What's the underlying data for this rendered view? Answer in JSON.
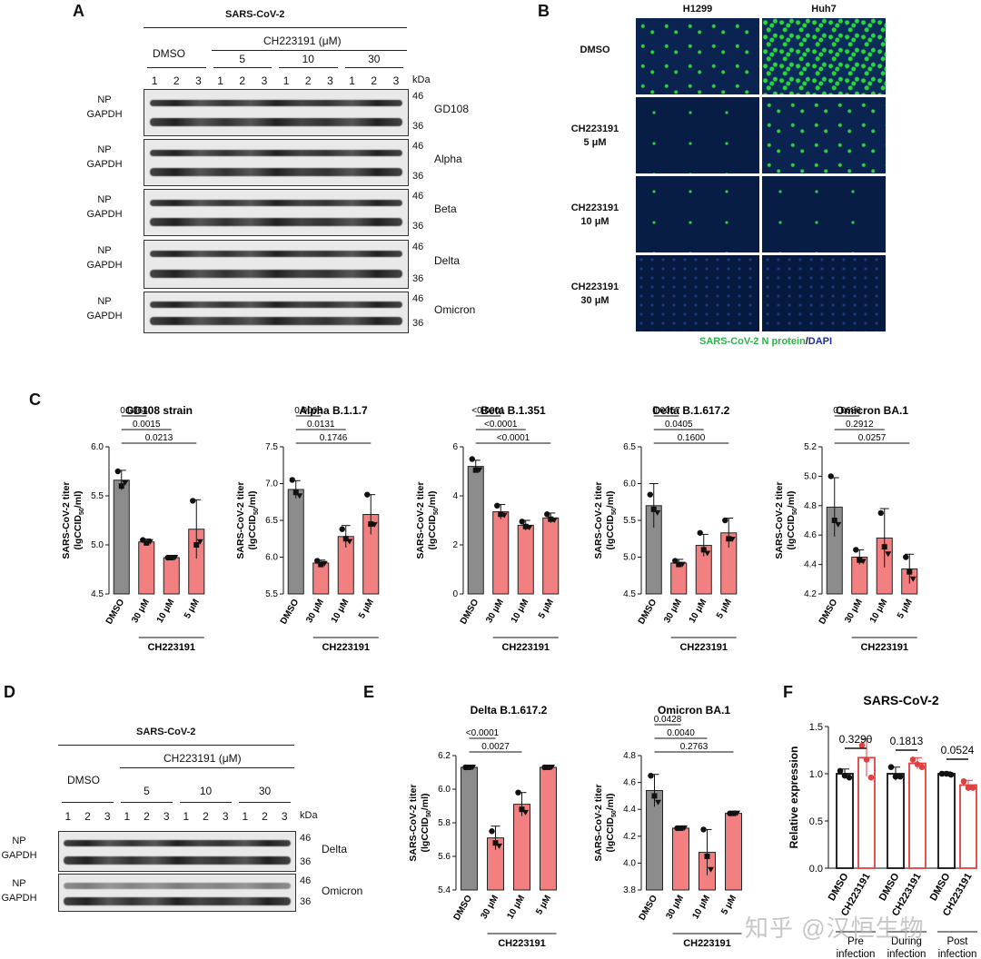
{
  "panelA": {
    "letter": "A",
    "title": "SARS-CoV-2",
    "dmso": "DMSO",
    "compound": "CH223191  (μM)",
    "doses": [
      "5",
      "10",
      "30"
    ],
    "lanes": [
      "1",
      "2",
      "3",
      "1",
      "2",
      "3",
      "1",
      "2",
      "3",
      "1",
      "2",
      "3"
    ],
    "kda": "kDa",
    "np": "NP",
    "gapdh": "GAPDH",
    "mw_top": "46",
    "mw_bot": "36",
    "strains": [
      "GD108",
      "Alpha",
      "Beta",
      "Delta",
      "Omicron"
    ]
  },
  "panelB": {
    "letter": "B",
    "cols": [
      "H1299",
      "Huh7"
    ],
    "rows": [
      "DMSO",
      "CH223191\n5 μM",
      "CH223191\n10 μM",
      "CH223191\n30 μM"
    ],
    "legend_green": "SARS-CoV-2 N protein",
    "legend_sep": "/",
    "legend_blue": "DAPI"
  },
  "panelC": {
    "letter": "C",
    "ylabel": "SARS-CoV-2 titer",
    "ylabel2": "(lgCCID",
    "ylabel_sub": "50",
    "ylabel3": "/ml)",
    "group": "CH223191"
  },
  "panelD": {
    "letter": "D",
    "title": "SARS-CoV-2",
    "dmso": "DMSO",
    "compound": "CH223191  (μM)",
    "doses": [
      "5",
      "10",
      "30"
    ],
    "lanes": [
      "1",
      "2",
      "3",
      "1",
      "2",
      "3",
      "1",
      "2",
      "3",
      "1",
      "2",
      "3"
    ],
    "kda": "kDa",
    "np": "NP",
    "gapdh": "GAPDH",
    "mw_top": "46",
    "mw_bot": "36",
    "strains": [
      "Delta",
      "Omicron"
    ]
  },
  "panelE": {
    "letter": "E"
  },
  "panelF": {
    "letter": "F",
    "title": "SARS-CoV-2",
    "ylabel": "Relative expression",
    "groups": [
      "Pre\ninfection",
      "During\ninfection",
      "Post\ninfection"
    ],
    "cats": [
      "DMSO",
      "CH223191"
    ],
    "pvalues": [
      "0.3290",
      "0.1813",
      "0.0524"
    ]
  },
  "watermark": "知乎 @汉恒生物",
  "colors": {
    "gray": "#8c8c8c",
    "salmon": "#f28080",
    "green": "#2bb34a",
    "blue": "#1f2f9a"
  },
  "chart_data": [
    {
      "type": "bar",
      "title": "GD108 strain",
      "categories": [
        "DMSO",
        "30 μM",
        "10 μM",
        "5 μM"
      ],
      "values": [
        5.66,
        5.03,
        4.87,
        5.16
      ],
      "errors": [
        0.1,
        0.03,
        0.01,
        0.3
      ],
      "points": [
        [
          5.75,
          5.6,
          5.63
        ],
        [
          5.05,
          5.02,
          5.03
        ],
        [
          4.87,
          4.87,
          4.87
        ],
        [
          5.45,
          5.0,
          5.03
        ]
      ],
      "ylim": [
        4.5,
        6.0
      ],
      "yticks": [
        "4.5",
        "5.0",
        "5.5",
        "6.0"
      ],
      "pvalues": [
        "0.0064",
        "0.0015",
        "0.0213"
      ]
    },
    {
      "type": "bar",
      "title": "Alpha B.1.1.7",
      "categories": [
        "DMSO",
        "30 μM",
        "10 μM",
        "5 μM"
      ],
      "values": [
        6.92,
        5.92,
        6.28,
        6.58
      ],
      "errors": [
        0.12,
        0.04,
        0.15,
        0.27
      ],
      "points": [
        [
          7.05,
          6.88,
          6.83
        ],
        [
          5.95,
          5.9,
          5.91
        ],
        [
          6.38,
          6.25,
          6.21
        ],
        [
          6.85,
          6.45,
          6.44
        ]
      ],
      "ylim": [
        5.5,
        7.5
      ],
      "yticks": [
        "5.5",
        "6.0",
        "6.5",
        "7.0",
        "7.5"
      ],
      "pvalues": [
        "0.0008",
        "0.0131",
        "0.1746"
      ]
    },
    {
      "type": "bar",
      "title": "Beta B.1.351",
      "categories": [
        "DMSO",
        "30 μM",
        "10 μM",
        "5 μM"
      ],
      "values": [
        5.2,
        3.35,
        2.8,
        3.1
      ],
      "errors": [
        0.25,
        0.3,
        0.2,
        0.2
      ],
      "points": [
        [
          5.5,
          5.05,
          5.05
        ],
        [
          3.6,
          3.25,
          3.2
        ],
        [
          2.95,
          2.75,
          2.7
        ],
        [
          3.25,
          3.05,
          3.0
        ]
      ],
      "ylim": [
        0,
        6
      ],
      "yticks": [
        "0",
        "2",
        "4",
        "6"
      ],
      "pvalues": [
        "<0.0001",
        "<0.0001",
        "<0.0001"
      ]
    },
    {
      "type": "bar",
      "title": "Delta B.1.617.2",
      "categories": [
        "DMSO",
        "30 μM",
        "10 μM",
        "5 μM"
      ],
      "values": [
        5.7,
        4.92,
        5.16,
        5.33
      ],
      "errors": [
        0.3,
        0.05,
        0.15,
        0.2
      ],
      "points": [
        [
          5.85,
          5.65,
          5.6
        ],
        [
          4.95,
          4.9,
          4.9
        ],
        [
          5.33,
          5.1,
          5.05
        ],
        [
          5.5,
          5.25,
          5.24
        ]
      ],
      "ylim": [
        4.5,
        6.5
      ],
      "yticks": [
        "4.5",
        "5.0",
        "5.5",
        "6.0",
        "6.5"
      ],
      "pvalues": [
        "0.0057",
        "0.0405",
        "0.1600"
      ]
    },
    {
      "type": "bar",
      "title": "Omicron BA.1",
      "categories": [
        "DMSO",
        "30 μM",
        "10 μM",
        "5 μM"
      ],
      "values": [
        4.79,
        4.45,
        4.58,
        4.37
      ],
      "errors": [
        0.2,
        0.05,
        0.2,
        0.1
      ],
      "points": [
        [
          5.0,
          4.7,
          4.67
        ],
        [
          4.5,
          4.43,
          4.42
        ],
        [
          4.75,
          4.52,
          4.47
        ],
        [
          4.45,
          4.35,
          4.3
        ]
      ],
      "ylim": [
        4.2,
        5.2
      ],
      "yticks": [
        "4.2",
        "4.4",
        "4.6",
        "4.8",
        "5.0",
        "5.2"
      ],
      "pvalues": [
        "0.0686",
        "0.2912",
        "0.0257"
      ]
    },
    {
      "type": "bar",
      "title": "Delta B.1.617.2",
      "categories": [
        "DMSO",
        "30 μM",
        "10 μM",
        "5 μM"
      ],
      "values": [
        6.13,
        5.71,
        5.91,
        6.13
      ],
      "errors": [
        0.0,
        0.07,
        0.07,
        0.0
      ],
      "points": [
        [
          6.13,
          6.13,
          6.13
        ],
        [
          5.75,
          5.68,
          5.66
        ],
        [
          5.98,
          5.88,
          5.86
        ],
        [
          6.13,
          6.13,
          6.13
        ]
      ],
      "ylim": [
        5.4,
        6.2
      ],
      "yticks": [
        "5.4",
        "5.6",
        "5.8",
        "6.0",
        "6.2"
      ],
      "pvalues": [
        "<0.0001",
        "0.0027"
      ]
    },
    {
      "type": "bar",
      "title": "Omicron BA.1",
      "categories": [
        "DMSO",
        "30 μM",
        "10 μM",
        "5 μM"
      ],
      "values": [
        4.54,
        4.26,
        4.08,
        4.37
      ],
      "errors": [
        0.12,
        0.0,
        0.17,
        0.0
      ],
      "points": [
        [
          4.65,
          4.5,
          4.45
        ],
        [
          4.26,
          4.26,
          4.26
        ],
        [
          4.25,
          4.05,
          3.95
        ],
        [
          4.37,
          4.37,
          4.37
        ]
      ],
      "ylim": [
        3.8,
        4.8
      ],
      "yticks": [
        "3.8",
        "4.0",
        "4.2",
        "4.4",
        "4.6",
        "4.8"
      ],
      "pvalues": [
        "0.0428",
        "0.0040",
        "0.2763"
      ]
    },
    {
      "type": "bar",
      "title": "SARS-CoV-2",
      "categories": [
        "DMSO",
        "CH223191",
        "DMSO",
        "CH223191",
        "DMSO",
        "CH223191"
      ],
      "values": [
        1.0,
        1.17,
        1.0,
        1.11,
        1.0,
        0.88
      ],
      "errors": [
        0.05,
        0.2,
        0.07,
        0.06,
        0.02,
        0.05
      ],
      "points": [
        [
          1.03,
          0.98,
          0.96
        ],
        [
          1.3,
          1.15,
          0.96
        ],
        [
          1.07,
          0.97,
          0.97
        ],
        [
          1.15,
          1.1,
          1.07
        ],
        [
          1.0,
          1.0,
          0.99
        ],
        [
          0.92,
          0.85,
          0.85
        ]
      ],
      "ylim": [
        0.0,
        1.5
      ],
      "yticks": [
        "0.0",
        "0.5",
        "1.0",
        "1.5"
      ],
      "pvalues": [
        "0.3290",
        "0.1813",
        "0.0524"
      ]
    }
  ]
}
